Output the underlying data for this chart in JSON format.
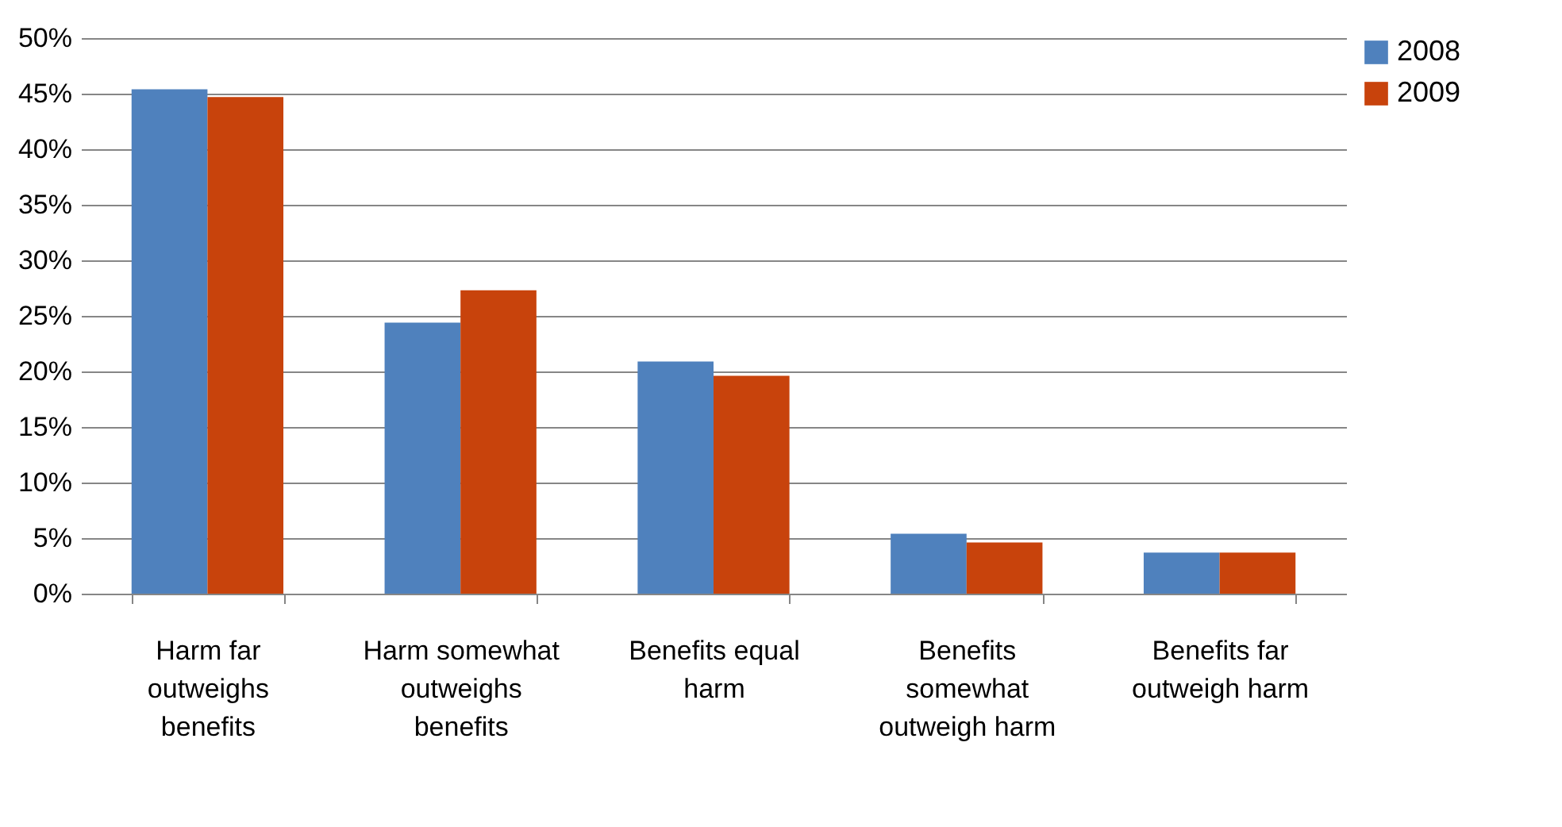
{
  "chart_data": {
    "type": "bar",
    "categories": [
      "Harm far outweighs benefits",
      "Harm somewhat outweighs benefits",
      "Benefits equal harm",
      "Benefits somewhat outweigh harm",
      "Benefits far outweigh harm"
    ],
    "series": [
      {
        "name": "2008",
        "color": "#4f81bd",
        "values": [
          45.4,
          24.4,
          20.9,
          5.4,
          3.7
        ]
      },
      {
        "name": "2009",
        "color": "#c8430c",
        "values": [
          44.7,
          27.3,
          19.6,
          4.6,
          3.7
        ]
      }
    ],
    "ylim": [
      0,
      50
    ],
    "yticks": [
      {
        "value": 0,
        "label": "0%"
      },
      {
        "value": 5,
        "label": "5%"
      },
      {
        "value": 10,
        "label": "10%"
      },
      {
        "value": 15,
        "label": "15%"
      },
      {
        "value": 20,
        "label": "20%"
      },
      {
        "value": 25,
        "label": "25%"
      },
      {
        "value": 30,
        "label": "30%"
      },
      {
        "value": 35,
        "label": "35%"
      },
      {
        "value": 40,
        "label": "40%"
      },
      {
        "value": 45,
        "label": "45%"
      },
      {
        "value": 50,
        "label": "50%"
      }
    ],
    "grid": "y",
    "legend": "right"
  }
}
